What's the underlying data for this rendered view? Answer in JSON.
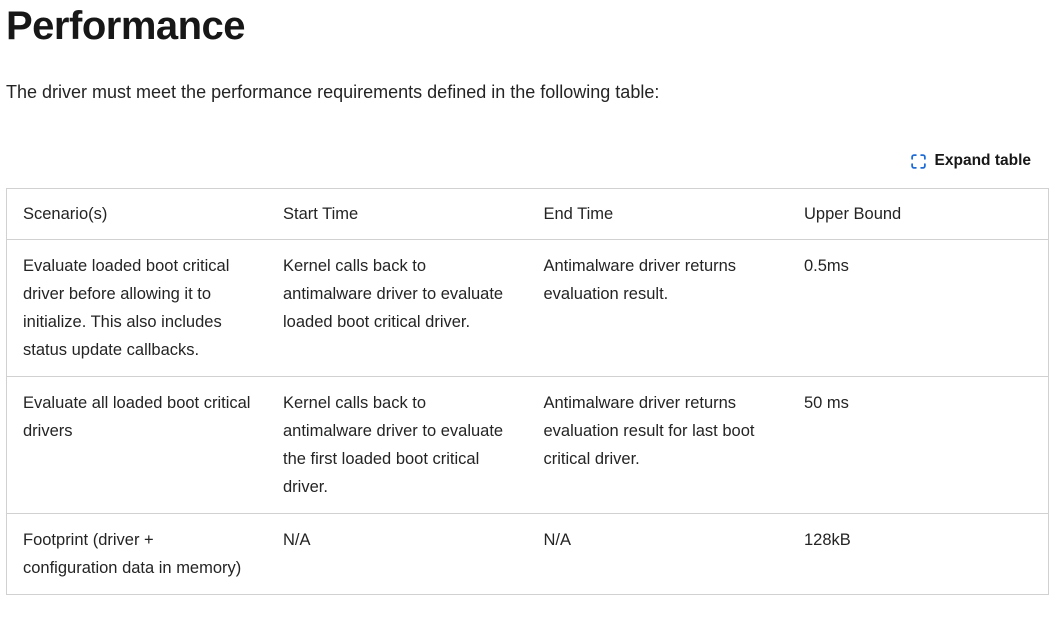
{
  "page": {
    "title": "Performance",
    "intro": "The driver must meet the performance requirements defined in the following table:"
  },
  "toolbar": {
    "expand_label": "Expand table",
    "expand_icon": "expand-icon"
  },
  "table": {
    "columns": [
      "Scenario(s)",
      "Start Time",
      "End Time",
      "Upper Bound"
    ],
    "rows": [
      [
        "Evaluate loaded boot critical driver before allowing it to initialize. This also includes status update callbacks.",
        "Kernel calls back to antimalware driver to evaluate loaded boot critical driver.",
        "Antimalware driver returns evaluation result.",
        "0.5ms"
      ],
      [
        "Evaluate all loaded boot critical drivers",
        "Kernel calls back to antimalware driver to evaluate the first loaded boot critical driver.",
        "Antimalware driver returns evaluation result for last boot critical driver.",
        "50 ms"
      ],
      [
        "Footprint (driver + configuration data in memory)",
        "N/A",
        "N/A",
        "128kB"
      ]
    ]
  },
  "colors": {
    "accent": "#1f6cd6",
    "border": "#d1d1d1",
    "heading_text": "#171717",
    "body_text": "#242424"
  }
}
